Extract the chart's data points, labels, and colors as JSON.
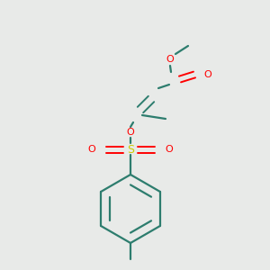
{
  "background_color": "#e8eae8",
  "bond_color": "#2d7d6e",
  "red_color": "#ff0000",
  "yellow_color": "#cccc00",
  "figsize": [
    3.0,
    3.0
  ],
  "dpi": 100,
  "xlim": [
    0,
    300
  ],
  "ylim": [
    0,
    300
  ]
}
